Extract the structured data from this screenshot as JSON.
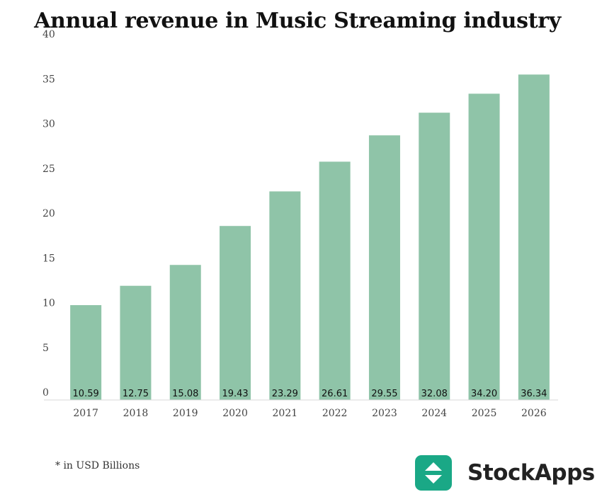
{
  "chart_data": {
    "type": "bar",
    "title": "Annual revenue in Music Streaming industry",
    "categories": [
      "2017",
      "2018",
      "2019",
      "2020",
      "2021",
      "2022",
      "2023",
      "2024",
      "2025",
      "2026"
    ],
    "values": [
      10.59,
      12.75,
      15.08,
      19.43,
      23.29,
      26.61,
      29.55,
      32.08,
      34.2,
      36.34
    ],
    "value_labels": [
      "10.59",
      "12.75",
      "15.08",
      "19.43",
      "23.29",
      "26.61",
      "29.55",
      "32.08",
      "34.20",
      "36.34"
    ],
    "yticks": [
      0,
      5,
      10,
      15,
      20,
      25,
      30,
      35,
      40
    ],
    "ylim": [
      0,
      40
    ],
    "xlabel": "",
    "ylabel": "",
    "grid": false,
    "bar_color": "#8fc4a8"
  },
  "footnote": "* in USD Billions",
  "brand": {
    "name": "StockApps",
    "logo_icon": "up-down-arrows-icon",
    "logo_color": "#1aa886"
  }
}
